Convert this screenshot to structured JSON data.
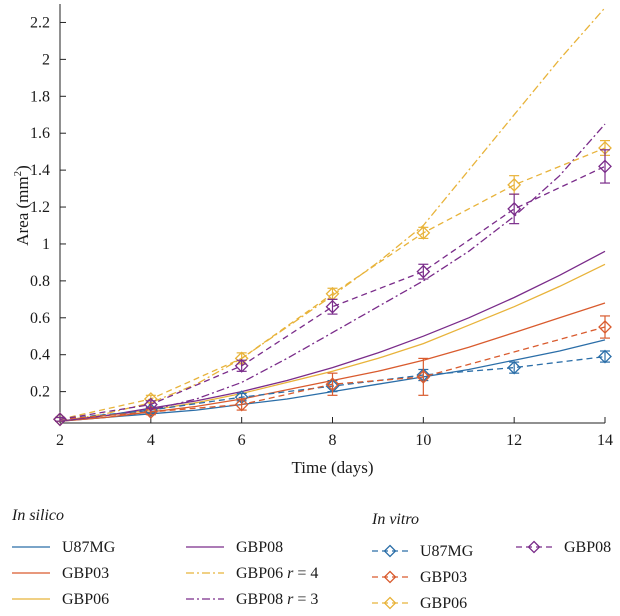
{
  "chart_data": {
    "type": "line",
    "xlabel": "Time (days)",
    "ylabel_main": "Area (mm",
    "ylabel_sup": "2",
    "ylabel_close": ")",
    "xlim": [
      2,
      14
    ],
    "ylim": [
      0.03,
      2.3
    ],
    "xticks": [
      2,
      4,
      6,
      8,
      10,
      12,
      14
    ],
    "yticks": [
      0.2,
      0.4,
      0.6,
      0.8,
      1,
      1.2,
      1.4,
      1.6,
      1.8,
      2,
      2.2
    ],
    "colors": {
      "blue": "#2b6ea8",
      "red": "#d95b2e",
      "yellow": "#e8b33a",
      "purple": "#7a2c8a"
    },
    "silico_x": [
      2,
      3,
      4,
      5,
      6,
      7,
      8,
      9,
      10,
      11,
      12,
      13,
      14
    ],
    "silico_series": [
      {
        "id": "u87mg",
        "name": "U87MG",
        "color": "#2b6ea8",
        "dash": "solid",
        "values": [
          0.04,
          0.06,
          0.08,
          0.1,
          0.13,
          0.16,
          0.2,
          0.24,
          0.28,
          0.32,
          0.37,
          0.42,
          0.48
        ]
      },
      {
        "id": "gbp03",
        "name": "GBP03",
        "color": "#d95b2e",
        "dash": "solid",
        "values": [
          0.04,
          0.06,
          0.09,
          0.12,
          0.16,
          0.21,
          0.26,
          0.31,
          0.37,
          0.44,
          0.52,
          0.6,
          0.68
        ]
      },
      {
        "id": "gbp06",
        "name": "GBP06",
        "color": "#e8b33a",
        "dash": "solid",
        "values": [
          0.04,
          0.07,
          0.1,
          0.14,
          0.19,
          0.25,
          0.31,
          0.38,
          0.46,
          0.56,
          0.66,
          0.77,
          0.89
        ]
      },
      {
        "id": "gbp08",
        "name": "GBP08",
        "color": "#7a2c8a",
        "dash": "solid",
        "values": [
          0.04,
          0.07,
          0.11,
          0.15,
          0.2,
          0.26,
          0.33,
          0.41,
          0.5,
          0.6,
          0.71,
          0.83,
          0.96
        ]
      },
      {
        "id": "gbp06r4",
        "name": "GBP06",
        "suffix_italic": "r",
        "suffix_rest": " = 4",
        "color": "#e8b33a",
        "dash": "dashdot",
        "values": [
          0.04,
          0.08,
          0.14,
          0.24,
          0.38,
          0.55,
          0.72,
          0.9,
          1.1,
          1.4,
          1.7,
          2.0,
          2.28
        ]
      },
      {
        "id": "gbp08r3",
        "name": "GBP08",
        "suffix_italic": "r",
        "suffix_rest": " = 3",
        "color": "#7a2c8a",
        "dash": "dashdot",
        "values": [
          0.04,
          0.07,
          0.1,
          0.16,
          0.25,
          0.38,
          0.52,
          0.66,
          0.8,
          0.96,
          1.15,
          1.37,
          1.65
        ]
      }
    ],
    "vitro_x": [
      2,
      4,
      6,
      8,
      10,
      12,
      14
    ],
    "vitro_series": [
      {
        "id": "u87mg",
        "name": "U87MG",
        "color": "#2b6ea8",
        "values": [
          0.05,
          0.1,
          0.17,
          0.23,
          0.29,
          0.33,
          0.39
        ],
        "err": [
          0.01,
          0.015,
          0.02,
          0.03,
          0.03,
          0.03,
          0.03
        ]
      },
      {
        "id": "gbp03",
        "name": "GBP03",
        "color": "#d95b2e",
        "values": [
          0.05,
          0.09,
          0.13,
          0.24,
          0.28,
          null,
          0.55
        ],
        "err": [
          0.01,
          0.015,
          0.03,
          0.06,
          0.1,
          0,
          0.06
        ]
      },
      {
        "id": "gbp06",
        "name": "GBP06",
        "color": "#e8b33a",
        "values": [
          0.05,
          0.16,
          0.38,
          0.73,
          1.06,
          1.32,
          1.52
        ],
        "err": [
          0.01,
          0.02,
          0.03,
          0.03,
          0.03,
          0.05,
          0.04
        ]
      },
      {
        "id": "gbp08",
        "name": "GBP08",
        "color": "#7a2c8a",
        "values": [
          0.05,
          0.13,
          0.34,
          0.66,
          0.85,
          1.19,
          1.42
        ],
        "err": [
          0.01,
          0.02,
          0.03,
          0.04,
          0.04,
          0.08,
          0.09
        ]
      }
    ],
    "legend": {
      "silico_heading": "In silico",
      "vitro_heading": "In vitro"
    }
  }
}
